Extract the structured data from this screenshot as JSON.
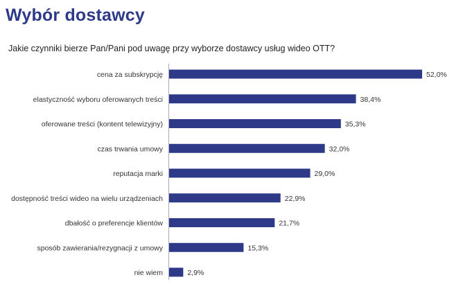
{
  "title": "Wybór dostawcy",
  "subtitle": "Jakie czynniki bierze Pan/Pani pod uwagę przy wyborze dostawcy usług wideo OTT?",
  "colors": {
    "bar": "#2e3a87",
    "title": "#2e3a87"
  },
  "chart_data": {
    "type": "bar",
    "orientation": "horizontal",
    "title": "Wybór dostawcy",
    "subtitle": "Jakie czynniki bierze Pan/Pani pod uwagę przy wyborze dostawcy usług wideo OTT?",
    "xlabel": "",
    "ylabel": "",
    "xlim": [
      0,
      52
    ],
    "grid": false,
    "value_suffix": "%",
    "categories": [
      "cena za subskrypcję",
      "elastyczność wyboru oferowanych treści",
      "oferowane treści (kontent telewizyjny)",
      "czas trwania umowy",
      "reputacja marki",
      "dostępność treści wideo na wielu urządzeniach",
      "dbałość o preferencje klientów",
      "sposób zawierania/rezygnacji z umowy",
      "nie wiem"
    ],
    "values": [
      52.0,
      38.4,
      35.3,
      32.0,
      29.0,
      22.9,
      21.7,
      15.3,
      2.9
    ],
    "value_labels": [
      "52,0%",
      "38,4%",
      "35,3%",
      "32,0%",
      "29,0%",
      "22,9%",
      "21,7%",
      "15,3%",
      "2,9%"
    ]
  }
}
